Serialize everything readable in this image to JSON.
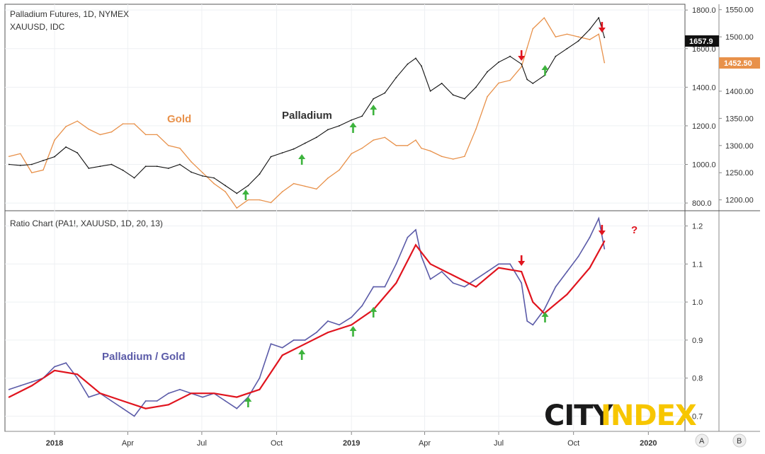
{
  "header": {
    "top_title": "Palladium Futures, 1D, NYMEX",
    "top_subtitle": "XAUUSD, IDC",
    "bottom_title": "Ratio Chart (PA1!, XAUUSD, 1D, 20, 13)"
  },
  "labels": {
    "gold": "Gold",
    "palladium": "Palladium",
    "ratio": "Palladium / Gold",
    "question": "?"
  },
  "logo": {
    "part1": "CITY",
    "part2": "INDEX"
  },
  "price_tags": {
    "palladium": "1657.9",
    "gold": "1452.50"
  },
  "footer_buttons": {
    "a": "A",
    "b": "B"
  },
  "colors": {
    "palladium": "#111111",
    "gold": "#e8914a",
    "ratio": "#5b5ba8",
    "ratio_ma": "#e0141e",
    "arrow_up": "#3db33d",
    "arrow_down": "#e0141e",
    "logo_dark": "#1a1a1a",
    "logo_accent": "#f7c600"
  },
  "chart_data": [
    {
      "type": "line",
      "name": "Palladium / Gold price",
      "title": "Palladium Futures, 1D, NYMEX",
      "series": [
        {
          "name": "Palladium",
          "axis": "left",
          "x": [
            "2017-11-06",
            "2017-11-20",
            "2017-12-04",
            "2017-12-18",
            "2018-01-01",
            "2018-01-15",
            "2018-01-29",
            "2018-02-12",
            "2018-02-26",
            "2018-03-12",
            "2018-03-26",
            "2018-04-09",
            "2018-04-23",
            "2018-05-07",
            "2018-05-21",
            "2018-06-04",
            "2018-06-18",
            "2018-07-02",
            "2018-07-16",
            "2018-07-30",
            "2018-08-13",
            "2018-08-27",
            "2018-09-10",
            "2018-09-24",
            "2018-10-08",
            "2018-10-22",
            "2018-11-05",
            "2018-11-19",
            "2018-12-03",
            "2018-12-17",
            "2019-01-01",
            "2019-01-14",
            "2019-01-28",
            "2019-02-11",
            "2019-02-25",
            "2019-03-11",
            "2019-03-21",
            "2019-03-28",
            "2019-04-08",
            "2019-04-22",
            "2019-05-06",
            "2019-05-20",
            "2019-06-03",
            "2019-06-17",
            "2019-07-01",
            "2019-07-15",
            "2019-07-29",
            "2019-08-05",
            "2019-08-12",
            "2019-08-26",
            "2019-09-09",
            "2019-09-23",
            "2019-10-07",
            "2019-10-21",
            "2019-11-01",
            "2019-11-08"
          ],
          "values": [
            1000,
            995,
            1000,
            1020,
            1040,
            1090,
            1060,
            980,
            990,
            1000,
            970,
            930,
            990,
            990,
            980,
            1000,
            960,
            940,
            930,
            890,
            850,
            890,
            950,
            1040,
            1060,
            1080,
            1110,
            1140,
            1180,
            1200,
            1230,
            1250,
            1340,
            1370,
            1450,
            1520,
            1550,
            1510,
            1380,
            1420,
            1360,
            1340,
            1400,
            1480,
            1530,
            1560,
            1520,
            1440,
            1420,
            1460,
            1560,
            1600,
            1640,
            1700,
            1760,
            1658
          ]
        },
        {
          "name": "Gold",
          "axis": "right",
          "x": [
            "2017-11-06",
            "2017-11-20",
            "2017-12-04",
            "2017-12-18",
            "2018-01-01",
            "2018-01-15",
            "2018-01-29",
            "2018-02-12",
            "2018-02-26",
            "2018-03-12",
            "2018-03-26",
            "2018-04-09",
            "2018-04-23",
            "2018-05-07",
            "2018-05-21",
            "2018-06-04",
            "2018-06-18",
            "2018-07-02",
            "2018-07-16",
            "2018-07-30",
            "2018-08-13",
            "2018-08-27",
            "2018-09-10",
            "2018-09-24",
            "2018-10-08",
            "2018-10-22",
            "2018-11-05",
            "2018-11-19",
            "2018-12-03",
            "2018-12-17",
            "2019-01-01",
            "2019-01-14",
            "2019-01-28",
            "2019-02-11",
            "2019-02-25",
            "2019-03-11",
            "2019-03-21",
            "2019-03-28",
            "2019-04-08",
            "2019-04-22",
            "2019-05-06",
            "2019-05-20",
            "2019-06-03",
            "2019-06-17",
            "2019-07-01",
            "2019-07-15",
            "2019-07-29",
            "2019-08-05",
            "2019-08-12",
            "2019-08-26",
            "2019-09-09",
            "2019-09-23",
            "2019-10-07",
            "2019-10-21",
            "2019-11-01",
            "2019-11-08"
          ],
          "values": [
            1280,
            1285,
            1250,
            1255,
            1310,
            1335,
            1345,
            1330,
            1320,
            1325,
            1340,
            1340,
            1320,
            1320,
            1300,
            1295,
            1270,
            1250,
            1230,
            1215,
            1185,
            1200,
            1200,
            1195,
            1215,
            1230,
            1225,
            1220,
            1240,
            1255,
            1285,
            1295,
            1310,
            1315,
            1300,
            1300,
            1310,
            1295,
            1290,
            1280,
            1275,
            1280,
            1330,
            1390,
            1415,
            1420,
            1445,
            1480,
            1515,
            1535,
            1500,
            1505,
            1500,
            1495,
            1505,
            1452.5
          ]
        }
      ],
      "left_axis_ticks": [
        800,
        1000,
        1200,
        1400,
        1600,
        1800
      ],
      "right_axis_ticks": [
        1200,
        1250,
        1300,
        1350,
        1400,
        1450,
        1500,
        1550
      ],
      "ylim_left": [
        760,
        1830
      ],
      "ylim_right": [
        1180,
        1560
      ],
      "annotations": [
        {
          "text": "Gold",
          "x": "2018-06-20",
          "series": "Gold"
        },
        {
          "text": "Palladium",
          "x": "2018-11-30",
          "series": "Palladium"
        }
      ],
      "up_arrows": [
        "2018-08-24",
        "2018-11-01",
        "2019-01-03",
        "2019-01-28",
        "2019-08-27"
      ],
      "down_arrows": [
        "2019-07-29",
        "2019-11-05"
      ]
    },
    {
      "type": "line",
      "name": "Ratio chart",
      "title": "Ratio Chart (PA1!, XAUUSD, 1D, 20, 13)",
      "series": [
        {
          "name": "Palladium / Gold",
          "x": [
            "2017-11-06",
            "2017-11-20",
            "2017-12-04",
            "2017-12-18",
            "2018-01-01",
            "2018-01-15",
            "2018-01-29",
            "2018-02-12",
            "2018-02-26",
            "2018-03-12",
            "2018-03-26",
            "2018-04-09",
            "2018-04-23",
            "2018-05-07",
            "2018-05-21",
            "2018-06-04",
            "2018-06-18",
            "2018-07-02",
            "2018-07-16",
            "2018-07-30",
            "2018-08-13",
            "2018-08-27",
            "2018-09-10",
            "2018-09-24",
            "2018-10-08",
            "2018-10-22",
            "2018-11-05",
            "2018-11-19",
            "2018-12-03",
            "2018-12-17",
            "2019-01-01",
            "2019-01-14",
            "2019-01-28",
            "2019-02-11",
            "2019-02-25",
            "2019-03-11",
            "2019-03-21",
            "2019-03-28",
            "2019-04-08",
            "2019-04-22",
            "2019-05-06",
            "2019-05-20",
            "2019-06-03",
            "2019-06-17",
            "2019-07-01",
            "2019-07-15",
            "2019-07-29",
            "2019-08-05",
            "2019-08-12",
            "2019-08-26",
            "2019-09-09",
            "2019-09-23",
            "2019-10-07",
            "2019-10-21",
            "2019-11-01",
            "2019-11-08"
          ],
          "values": [
            0.77,
            0.78,
            0.79,
            0.8,
            0.83,
            0.84,
            0.8,
            0.75,
            0.76,
            0.74,
            0.72,
            0.7,
            0.74,
            0.74,
            0.76,
            0.77,
            0.76,
            0.75,
            0.76,
            0.74,
            0.72,
            0.75,
            0.8,
            0.89,
            0.88,
            0.9,
            0.9,
            0.92,
            0.95,
            0.94,
            0.96,
            0.99,
            1.04,
            1.04,
            1.1,
            1.17,
            1.19,
            1.12,
            1.06,
            1.08,
            1.05,
            1.04,
            1.06,
            1.08,
            1.1,
            1.1,
            1.05,
            0.95,
            0.94,
            0.98,
            1.04,
            1.08,
            1.12,
            1.17,
            1.22,
            1.14
          ]
        },
        {
          "name": "Moving average",
          "x": [
            "2017-11-06",
            "2017-12-04",
            "2018-01-01",
            "2018-01-29",
            "2018-02-26",
            "2018-03-26",
            "2018-04-23",
            "2018-05-21",
            "2018-06-18",
            "2018-07-16",
            "2018-08-13",
            "2018-09-10",
            "2018-10-08",
            "2018-11-05",
            "2018-12-03",
            "2019-01-01",
            "2019-01-28",
            "2019-02-25",
            "2019-03-21",
            "2019-04-08",
            "2019-05-06",
            "2019-06-03",
            "2019-07-01",
            "2019-07-29",
            "2019-08-12",
            "2019-08-26",
            "2019-09-23",
            "2019-10-21",
            "2019-11-08"
          ],
          "values": [
            0.75,
            0.78,
            0.82,
            0.81,
            0.76,
            0.74,
            0.72,
            0.73,
            0.76,
            0.76,
            0.75,
            0.77,
            0.86,
            0.89,
            0.92,
            0.94,
            0.98,
            1.05,
            1.15,
            1.1,
            1.07,
            1.04,
            1.09,
            1.08,
            1.0,
            0.97,
            1.02,
            1.09,
            1.16
          ]
        }
      ],
      "y_axis_ticks": [
        0.7,
        0.8,
        0.9,
        1.0,
        1.1,
        1.2
      ],
      "ylim": [
        0.66,
        1.24
      ],
      "x_axis_ticks": [
        "2018",
        "Apr",
        "Jul",
        "Oct",
        "2019",
        "Apr",
        "Jul",
        "Oct",
        "2020"
      ],
      "up_arrows": [
        "2018-08-27",
        "2018-11-01",
        "2019-01-03",
        "2019-01-28",
        "2019-08-27"
      ],
      "down_arrows": [
        "2019-07-29",
        "2019-11-05"
      ]
    }
  ]
}
